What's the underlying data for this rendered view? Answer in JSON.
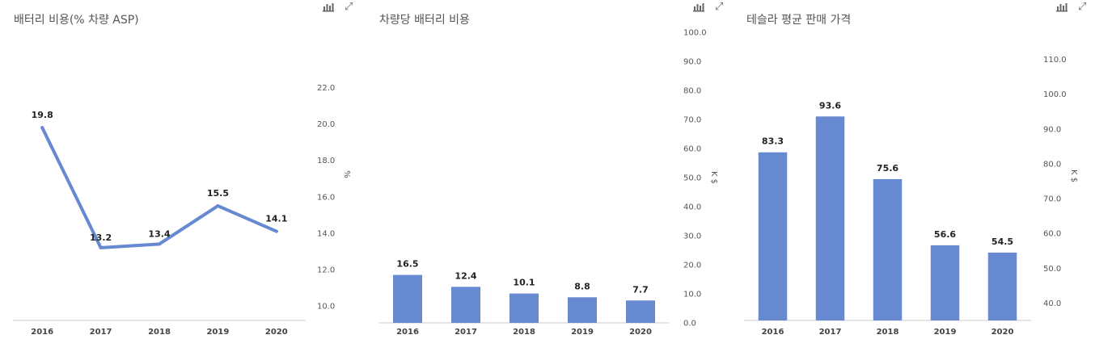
{
  "icons": {
    "chart": "bar-chart-icon",
    "expand": "expand-icon"
  },
  "colors": {
    "series": "#6689d1",
    "axis": "#cccccc"
  },
  "chart_data": [
    {
      "type": "line",
      "title": "배터리 비용(% 차량 ASP)",
      "x": [
        "2016",
        "2017",
        "2018",
        "2019",
        "2020"
      ],
      "values": [
        19.8,
        13.2,
        13.4,
        15.5,
        14.1
      ],
      "value_labels": [
        "19.8",
        "13.2",
        "13.4",
        "15.5",
        "14.1"
      ],
      "yticks": [
        "10.0",
        "12.0",
        "14.0",
        "16.0",
        "18.0",
        "20.0",
        "22.0"
      ],
      "ylim": [
        9.2,
        23.0
      ],
      "yunit": "%",
      "grid": false
    },
    {
      "type": "bar",
      "title": "차량당 배터리 비용",
      "categories": [
        "2016",
        "2017",
        "2018",
        "2019",
        "2020"
      ],
      "values": [
        16.5,
        12.4,
        10.1,
        8.8,
        7.7
      ],
      "value_labels": [
        "16.5",
        "12.4",
        "10.1",
        "8.8",
        "7.7"
      ],
      "yticks": [
        "0.0",
        "10.0",
        "20.0",
        "30.0",
        "40.0",
        "50.0",
        "60.0",
        "70.0",
        "80.0",
        "90.0",
        "100.0"
      ],
      "ylim": [
        0,
        100
      ],
      "yunit": "K $",
      "grid": false
    },
    {
      "type": "bar",
      "title": "테슬라 평균 판매 가격",
      "categories": [
        "2016",
        "2017",
        "2018",
        "2019",
        "2020"
      ],
      "values": [
        83.3,
        93.6,
        75.6,
        56.6,
        54.5
      ],
      "value_labels": [
        "83.3",
        "93.6",
        "75.6",
        "56.6",
        "54.5"
      ],
      "yticks": [
        "40.0",
        "50.0",
        "60.0",
        "70.0",
        "80.0",
        "90.0",
        "100.0",
        "110.0"
      ],
      "ylim": [
        35,
        115
      ],
      "yunit": "K $",
      "grid": false
    }
  ]
}
